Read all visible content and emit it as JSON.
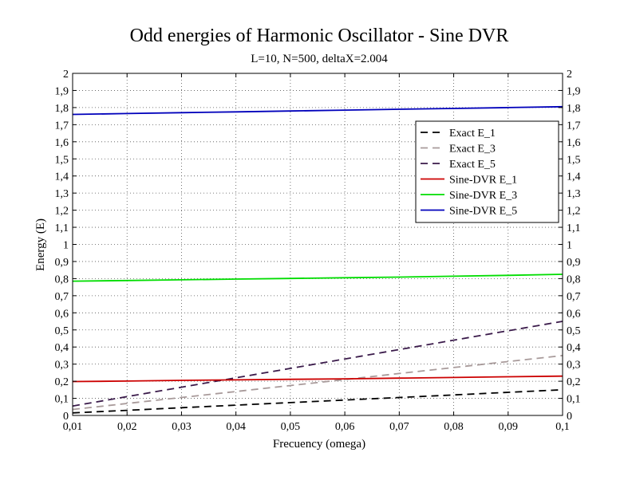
{
  "chart_data": {
    "type": "line",
    "title": "Odd energies of Harmonic Oscillator - Sine DVR",
    "subtitle": "L=10, N=500, deltaX=2.004",
    "xlabel": "Frecuency (omega)",
    "ylabel": "Energy (E)",
    "xlim": [
      0.01,
      0.1
    ],
    "ylim": [
      0,
      2
    ],
    "x_ticks": [
      0.01,
      0.02,
      0.03,
      0.04,
      0.05,
      0.06,
      0.07,
      0.08,
      0.09,
      0.1
    ],
    "x_tick_labels": [
      "0,01",
      "0,02",
      "0,03",
      "0,04",
      "0,05",
      "0,06",
      "0,07",
      "0,08",
      "0,09",
      "0,1"
    ],
    "y_ticks": [
      0,
      0.1,
      0.2,
      0.3,
      0.4,
      0.5,
      0.6,
      0.7,
      0.8,
      0.9,
      1,
      1.1,
      1.2,
      1.3,
      1.4,
      1.5,
      1.6,
      1.7,
      1.8,
      1.9,
      2
    ],
    "y_tick_labels": [
      "0",
      "0,1",
      "0,2",
      "0,3",
      "0,4",
      "0,5",
      "0,6",
      "0,7",
      "0,8",
      "0,9",
      "1",
      "1,1",
      "1,2",
      "1,3",
      "1,4",
      "1,5",
      "1,6",
      "1,7",
      "1,8",
      "1,9",
      "2"
    ],
    "grid": true,
    "grid_style": "dotted",
    "legend_position": "top-right",
    "x": [
      0.01,
      0.02,
      0.03,
      0.04,
      0.05,
      0.06,
      0.07,
      0.08,
      0.09,
      0.1
    ],
    "series": [
      {
        "name": "Exact E_1",
        "color": "#000000",
        "dash": true,
        "values": [
          0.015,
          0.03,
          0.045,
          0.06,
          0.075,
          0.09,
          0.105,
          0.12,
          0.135,
          0.15
        ]
      },
      {
        "name": "Exact E_3",
        "color": "#a89a9a",
        "dash": true,
        "values": [
          0.035,
          0.07,
          0.105,
          0.14,
          0.175,
          0.21,
          0.245,
          0.28,
          0.315,
          0.35
        ]
      },
      {
        "name": "Exact E_5",
        "color": "#3a1a4a",
        "dash": true,
        "values": [
          0.055,
          0.11,
          0.165,
          0.22,
          0.275,
          0.33,
          0.385,
          0.44,
          0.495,
          0.55
        ]
      },
      {
        "name": "Sine-DVR E_1",
        "color": "#cc0000",
        "dash": false,
        "values": [
          0.198,
          0.201,
          0.205,
          0.208,
          0.211,
          0.214,
          0.218,
          0.222,
          0.226,
          0.23
        ]
      },
      {
        "name": "Sine-DVR E_3",
        "color": "#00dd00",
        "dash": false,
        "values": [
          0.785,
          0.789,
          0.793,
          0.797,
          0.801,
          0.805,
          0.809,
          0.814,
          0.819,
          0.825
        ]
      },
      {
        "name": "Sine-DVR E_5",
        "color": "#0000bb",
        "dash": false,
        "values": [
          1.76,
          1.765,
          1.77,
          1.775,
          1.78,
          1.785,
          1.79,
          1.795,
          1.8,
          1.805
        ]
      }
    ]
  }
}
